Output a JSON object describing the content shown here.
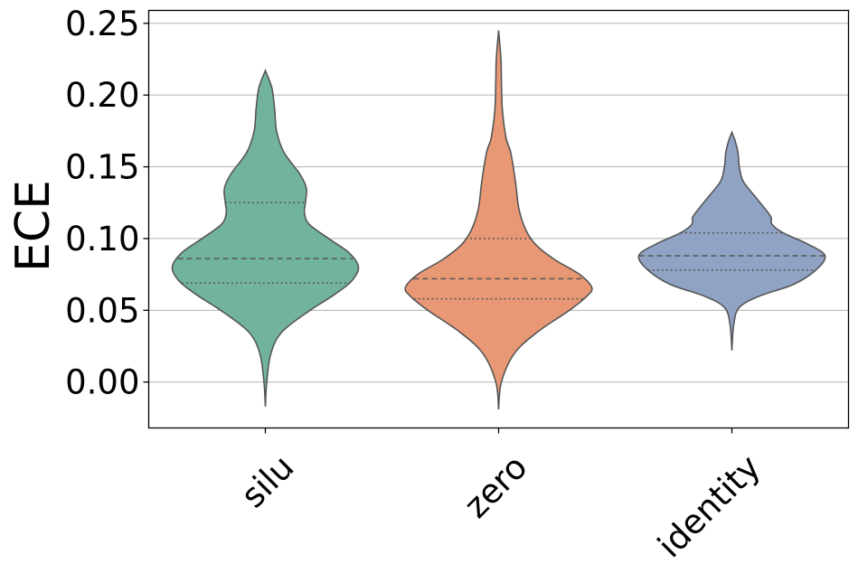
{
  "chart_data": {
    "type": "violin",
    "title": "",
    "xlabel": "",
    "ylabel": "ECE",
    "ylim": [
      -0.032,
      0.259
    ],
    "yticks": [
      "0.00",
      "0.05",
      "0.10",
      "0.15",
      "0.20",
      "0.25"
    ],
    "ytick_values": [
      0.0,
      0.05,
      0.1,
      0.15,
      0.2,
      0.25
    ],
    "grid": "horizontal",
    "categories": [
      "silu",
      "zero",
      "identity"
    ],
    "colors": [
      "#72b39f",
      "#e99875",
      "#91a3c5"
    ],
    "edge_color": "#555555",
    "series": [
      {
        "category": "silu",
        "min": -0.017,
        "max": 0.217,
        "q1": 0.069,
        "median": 0.086,
        "q3": 0.125,
        "density": [
          [
            -0.017,
            0.0
          ],
          [
            0.0,
            0.015
          ],
          [
            0.02,
            0.06
          ],
          [
            0.035,
            0.18
          ],
          [
            0.05,
            0.48
          ],
          [
            0.06,
            0.72
          ],
          [
            0.07,
            0.92
          ],
          [
            0.08,
            1.0
          ],
          [
            0.09,
            0.9
          ],
          [
            0.1,
            0.68
          ],
          [
            0.11,
            0.47
          ],
          [
            0.118,
            0.42
          ],
          [
            0.125,
            0.43
          ],
          [
            0.135,
            0.44
          ],
          [
            0.145,
            0.37
          ],
          [
            0.16,
            0.2
          ],
          [
            0.175,
            0.12
          ],
          [
            0.19,
            0.1
          ],
          [
            0.205,
            0.07
          ],
          [
            0.217,
            0.0
          ]
        ]
      },
      {
        "category": "zero",
        "min": -0.019,
        "max": 0.245,
        "q1": 0.058,
        "median": 0.072,
        "q3": 0.1,
        "density": [
          [
            -0.019,
            0.0
          ],
          [
            0.0,
            0.03
          ],
          [
            0.02,
            0.17
          ],
          [
            0.035,
            0.42
          ],
          [
            0.05,
            0.76
          ],
          [
            0.06,
            0.95
          ],
          [
            0.066,
            1.0
          ],
          [
            0.075,
            0.87
          ],
          [
            0.085,
            0.61
          ],
          [
            0.095,
            0.41
          ],
          [
            0.105,
            0.3
          ],
          [
            0.12,
            0.22
          ],
          [
            0.14,
            0.18
          ],
          [
            0.16,
            0.13
          ],
          [
            0.17,
            0.08
          ],
          [
            0.19,
            0.04
          ],
          [
            0.21,
            0.03
          ],
          [
            0.225,
            0.025
          ],
          [
            0.245,
            0.0
          ]
        ]
      },
      {
        "category": "identity",
        "min": 0.022,
        "max": 0.174,
        "q1": 0.078,
        "median": 0.088,
        "q3": 0.104,
        "density": [
          [
            0.022,
            0.0
          ],
          [
            0.04,
            0.02
          ],
          [
            0.052,
            0.08
          ],
          [
            0.06,
            0.3
          ],
          [
            0.068,
            0.66
          ],
          [
            0.078,
            0.9
          ],
          [
            0.088,
            1.0
          ],
          [
            0.096,
            0.82
          ],
          [
            0.104,
            0.55
          ],
          [
            0.11,
            0.43
          ],
          [
            0.115,
            0.42
          ],
          [
            0.122,
            0.34
          ],
          [
            0.13,
            0.24
          ],
          [
            0.14,
            0.12
          ],
          [
            0.15,
            0.08
          ],
          [
            0.16,
            0.065
          ],
          [
            0.168,
            0.035
          ],
          [
            0.174,
            0.0
          ]
        ]
      }
    ]
  }
}
